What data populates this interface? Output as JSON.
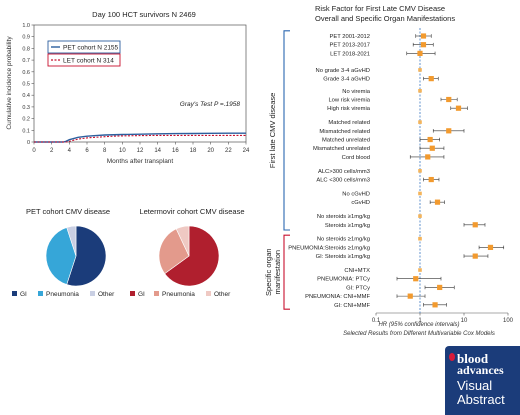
{
  "chart_data": [
    {
      "type": "line",
      "title": "Day 100 HCT survivors N 2469",
      "xlabel": "Months after transplant",
      "ylabel": "Cumulative incidence probability",
      "xlim": [
        0,
        24
      ],
      "ylim": [
        0,
        1.0
      ],
      "xticks": [
        "0",
        "2",
        "4",
        "6",
        "8",
        "10",
        "12",
        "14",
        "16",
        "18",
        "20",
        "22",
        "24"
      ],
      "yticks": [
        "0",
        "0.1",
        "0.2",
        "0.3",
        "0.4",
        "0.5",
        "0.6",
        "0.7",
        "0.8",
        "0.9",
        "1.0"
      ],
      "annotation": "Gray's Test P =.1958",
      "legend_position": "top-left",
      "series": [
        {
          "name": "PET cohort N 2155",
          "color": "#2c5f9e",
          "style": "solid",
          "points": [
            [
              0,
              0
            ],
            [
              3.3,
              0
            ],
            [
              3.6,
              0.005
            ],
            [
              4,
              0.02
            ],
            [
              5,
              0.04
            ],
            [
              6,
              0.05
            ],
            [
              7,
              0.055
            ],
            [
              8,
              0.06
            ],
            [
              10,
              0.064
            ],
            [
              12,
              0.067
            ],
            [
              14,
              0.07
            ],
            [
              16,
              0.072
            ],
            [
              18,
              0.073
            ],
            [
              20,
              0.074
            ],
            [
              22,
              0.075
            ],
            [
              24,
              0.075
            ]
          ]
        },
        {
          "name": "LET cohort N 314",
          "color": "#c8102e",
          "style": "dashed",
          "points": [
            [
              0,
              0
            ],
            [
              3.8,
              0
            ],
            [
              4,
              0.005
            ],
            [
              4.5,
              0.015
            ],
            [
              5,
              0.025
            ],
            [
              6,
              0.035
            ],
            [
              7,
              0.04
            ],
            [
              8,
              0.045
            ],
            [
              9,
              0.05
            ],
            [
              10,
              0.052
            ],
            [
              12,
              0.055
            ],
            [
              14,
              0.056
            ],
            [
              24,
              0.056
            ]
          ]
        }
      ]
    },
    {
      "type": "pie",
      "title": "PET cohort CMV disease",
      "categories": [
        "GI",
        "Pneumonia",
        "Other"
      ],
      "values": [
        55,
        40,
        5
      ],
      "colors": [
        "#1b3c7a",
        "#36a6d8",
        "#c9cfe3"
      ]
    },
    {
      "type": "pie",
      "title": "Letermovir cohort CMV disease",
      "categories": [
        "GI",
        "Pneumonia",
        "Other"
      ],
      "values": [
        65,
        28,
        7
      ],
      "colors": [
        "#b01f2e",
        "#e39a8c",
        "#efc9c3"
      ]
    },
    {
      "type": "scatter",
      "subtype": "forest",
      "title": "Risk Factor for First Late CMV Disease",
      "subtitle": "Overall and Specific Organ Manifestations",
      "xlabel": "HR (95% confidence intervals)",
      "caption": "Selected Results from Different Multivariable Cox Models",
      "xscale": "log",
      "xlim": [
        0.1,
        100
      ],
      "xticks": [
        "0.1",
        "1",
        "10",
        "100"
      ],
      "reference_line": 1,
      "groups": [
        {
          "label": "First late CMV disease",
          "color": "#2b67b0"
        },
        {
          "label": "Specific organ manifestation",
          "color": "#c8102e"
        }
      ],
      "rows": [
        {
          "label": "PET 2001-2012",
          "hr": 1.2,
          "lo": 0.8,
          "hi": 1.8,
          "group": 0,
          "slot": 0
        },
        {
          "label": "PET 2013-2017",
          "hr": 1.2,
          "lo": 0.7,
          "hi": 2.0,
          "group": 0,
          "slot": 1
        },
        {
          "label": "LET 2018-2021",
          "hr": 1.0,
          "lo": 0.5,
          "hi": 2.2,
          "group": 0,
          "slot": 2
        },
        {
          "label": "No grade 3-4 aGvHD",
          "hr": 1.0,
          "lo": 1.0,
          "hi": 1.0,
          "group": 0,
          "slot": 3.9
        },
        {
          "label": "Grade 3-4 aGvHD",
          "hr": 1.8,
          "lo": 1.2,
          "hi": 2.6,
          "group": 0,
          "slot": 4.9
        },
        {
          "label": "No viremia",
          "hr": 1.0,
          "lo": 1.0,
          "hi": 1.0,
          "group": 0,
          "slot": 6.3
        },
        {
          "label": "Low risk viremia",
          "hr": 4.5,
          "lo": 3.0,
          "hi": 7.0,
          "group": 0,
          "slot": 7.3
        },
        {
          "label": "High risk viremia",
          "hr": 7.5,
          "lo": 5.0,
          "hi": 12.0,
          "group": 0,
          "slot": 8.3
        },
        {
          "label": "Matched related",
          "hr": 1.0,
          "lo": 1.0,
          "hi": 1.0,
          "group": 0,
          "slot": 9.9
        },
        {
          "label": "Mismatched related",
          "hr": 4.5,
          "lo": 2.0,
          "hi": 10.0,
          "group": 0,
          "slot": 10.9
        },
        {
          "label": "Matched unrelated",
          "hr": 1.7,
          "lo": 1.0,
          "hi": 2.8,
          "group": 0,
          "slot": 11.9
        },
        {
          "label": "Mismatched unrelated",
          "hr": 1.9,
          "lo": 1.0,
          "hi": 3.5,
          "group": 0,
          "slot": 12.9
        },
        {
          "label": "Cord blood",
          "hr": 1.5,
          "lo": 0.6,
          "hi": 3.5,
          "group": 0,
          "slot": 13.9
        },
        {
          "label": "ALC>300 cells/mm3",
          "hr": 1.0,
          "lo": 1.0,
          "hi": 1.0,
          "group": 0,
          "slot": 15.5
        },
        {
          "label": "ALC <300 cells/mm3",
          "hr": 1.8,
          "lo": 1.2,
          "hi": 2.7,
          "group": 0,
          "slot": 16.5
        },
        {
          "label": "No cGvHD",
          "hr": 1.0,
          "lo": 1.0,
          "hi": 1.0,
          "group": 0,
          "slot": 18.1
        },
        {
          "label": "cGvHD",
          "hr": 2.5,
          "lo": 1.7,
          "hi": 3.6,
          "group": 0,
          "slot": 19.1
        },
        {
          "label": "No steroids ≥1mg/kg",
          "hr": 1.0,
          "lo": 1.0,
          "hi": 1.0,
          "group": 0,
          "slot": 20.7
        },
        {
          "label": "Steroids ≥1mg/kg",
          "hr": 18.0,
          "lo": 10.0,
          "hi": 30.0,
          "group": 0,
          "slot": 21.7
        },
        {
          "label": "No steroids ≥1mg/kg",
          "hr": 1.0,
          "lo": 1.0,
          "hi": 1.0,
          "group": 1,
          "slot": 23.3
        },
        {
          "label": "PNEUMONIA:Steroids ≥1mg/kg",
          "hr": 40.0,
          "lo": 22.0,
          "hi": 80.0,
          "group": 1,
          "slot": 24.3
        },
        {
          "label": "GI: Steroids ≥1mg/kg",
          "hr": 18.0,
          "lo": 10.0,
          "hi": 35.0,
          "group": 1,
          "slot": 25.3
        },
        {
          "label": "CNI+MTX",
          "hr": 1.0,
          "lo": 1.0,
          "hi": 1.0,
          "group": 1,
          "slot": 26.9
        },
        {
          "label": "PNEUMONIA: PTCy",
          "hr": 0.8,
          "lo": 0.3,
          "hi": 3.0,
          "group": 1,
          "slot": 27.9
        },
        {
          "label": "GI: PTCy",
          "hr": 2.8,
          "lo": 1.3,
          "hi": 6.0,
          "group": 1,
          "slot": 28.9
        },
        {
          "label": "PNEUMONIA: CNI+MMF",
          "hr": 0.6,
          "lo": 0.3,
          "hi": 1.3,
          "group": 1,
          "slot": 29.9
        },
        {
          "label": "GI: CNI+MMF",
          "hr": 2.2,
          "lo": 1.2,
          "hi": 4.0,
          "group": 1,
          "slot": 30.9
        }
      ]
    }
  ],
  "brand": {
    "line1": "blood",
    "line2": "advances",
    "line3": "Visual",
    "line4": "Abstract"
  }
}
